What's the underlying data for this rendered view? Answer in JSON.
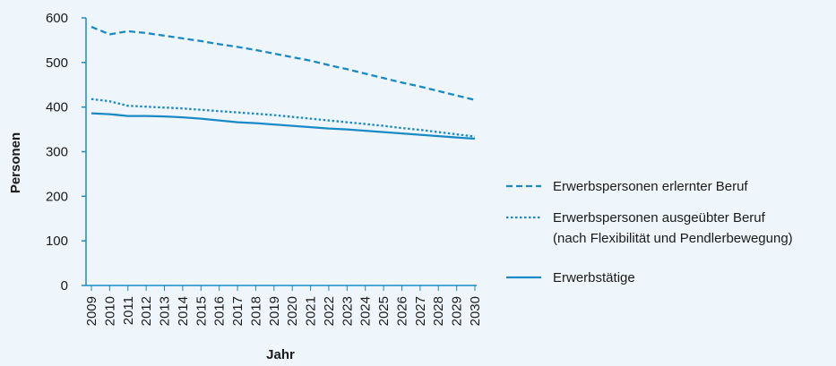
{
  "chart_data": {
    "type": "line",
    "xlabel": "Jahr",
    "ylabel": "Personen",
    "ylim": [
      0,
      600
    ],
    "yticks": [
      0,
      100,
      200,
      300,
      400,
      500,
      600
    ],
    "grid": false,
    "legend_position": "right",
    "x": [
      "2009",
      "2010",
      "2011",
      "2012",
      "2013",
      "2014",
      "2015",
      "2016",
      "2017",
      "2018",
      "2019",
      "2020",
      "2021",
      "2022",
      "2023",
      "2024",
      "2025",
      "2026",
      "2027",
      "2028",
      "2029",
      "2030"
    ],
    "series": [
      {
        "name": "Erwerbspersonen erlernter Beruf",
        "style": "dashed",
        "color": "#1a8ac6",
        "values": [
          580,
          563,
          570,
          566,
          560,
          554,
          548,
          541,
          535,
          528,
          520,
          512,
          504,
          494,
          485,
          475,
          465,
          455,
          446,
          436,
          426,
          416
        ]
      },
      {
        "name": "Erwerbspersonen ausgeübter Beruf",
        "name_line2": "(nach Flexibilität und Pendlerbewegung)",
        "style": "dotted",
        "color": "#1a8ac6",
        "values": [
          418,
          413,
          403,
          401,
          399,
          397,
          394,
          391,
          388,
          385,
          382,
          378,
          374,
          370,
          366,
          362,
          358,
          353,
          349,
          344,
          339,
          334
        ]
      },
      {
        "name": "Erwerbstätige",
        "style": "solid",
        "color": "#1a8ac6",
        "values": [
          386,
          384,
          380,
          380,
          379,
          377,
          374,
          370,
          366,
          364,
          361,
          358,
          355,
          352,
          350,
          347,
          344,
          341,
          338,
          335,
          332,
          329
        ]
      }
    ]
  }
}
